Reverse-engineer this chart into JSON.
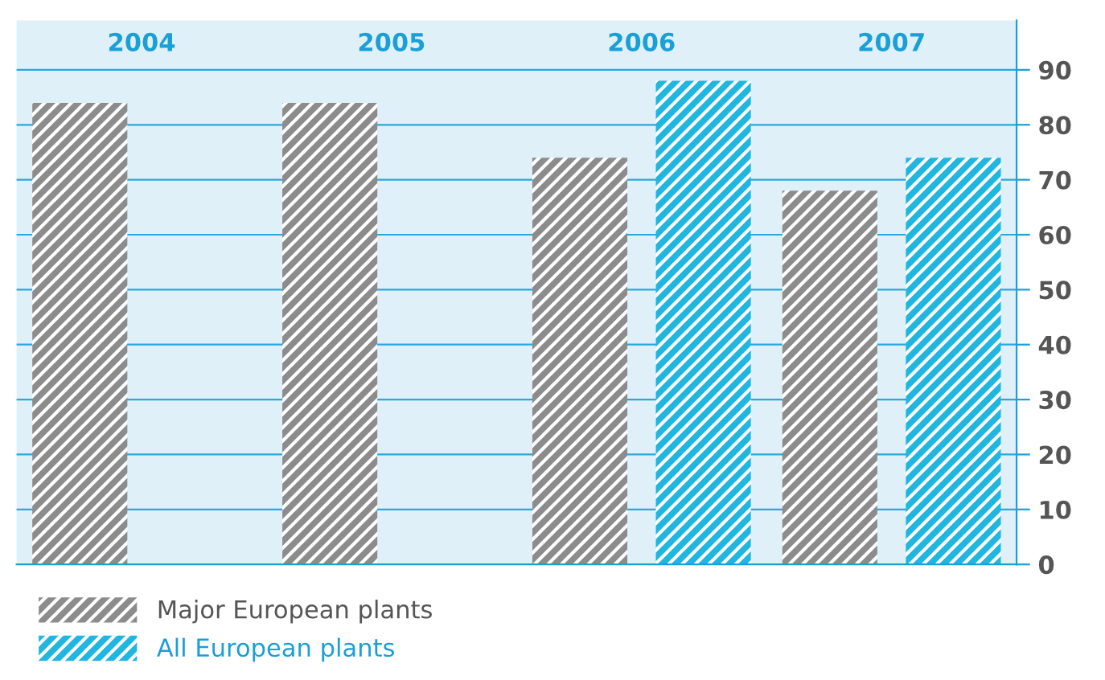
{
  "chart_data": {
    "type": "bar",
    "categories": [
      "2004",
      "2005",
      "2006",
      "2007"
    ],
    "series": [
      {
        "name": "Major European plants",
        "color": "#8c8c8c",
        "values": [
          84,
          84,
          74,
          68
        ]
      },
      {
        "name": "All European plants",
        "color": "#1fb6e0",
        "values": [
          null,
          null,
          88,
          74
        ]
      }
    ],
    "ylim": [
      0,
      99
    ],
    "yticks": [
      0,
      10,
      20,
      30,
      40,
      50,
      60,
      70,
      80,
      90
    ],
    "grid": "y",
    "legend": "bottom left"
  }
}
